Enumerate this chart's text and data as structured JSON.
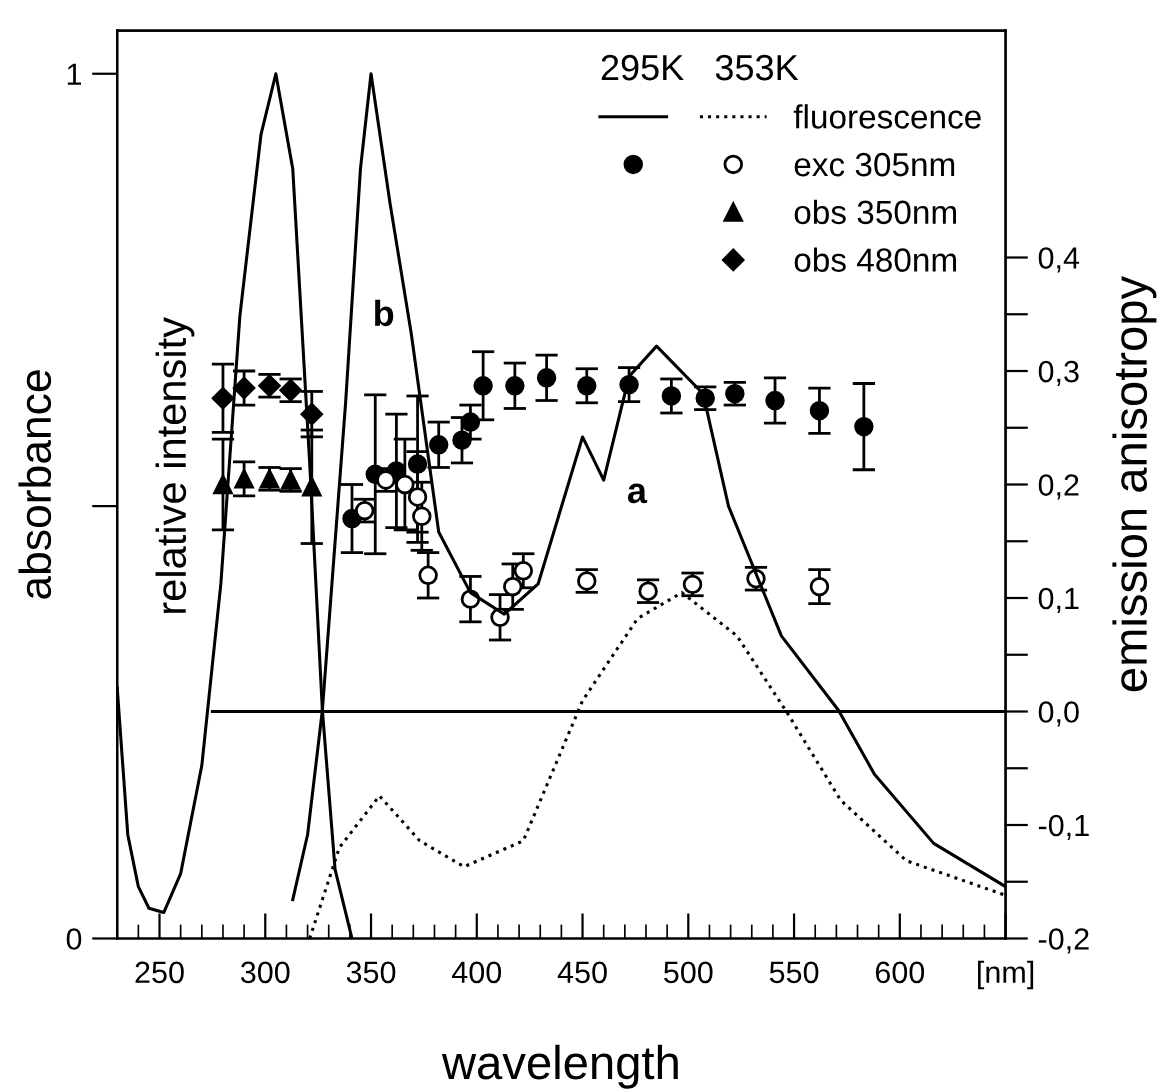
{
  "chart_data": {
    "type": "line",
    "xlabel": "wavelength",
    "ylabel": "absorbance",
    "y2label": "emission anisotropy",
    "legend_title": "295K   353K",
    "legend": "top right",
    "xlim": [
      230,
      650
    ],
    "ylim": [
      0,
      1.05
    ],
    "y2lim": [
      -0.2,
      0.6
    ],
    "xticks": [
      {
        "value": 230,
        "label": null
      },
      {
        "value": 240,
        "label": null
      },
      250,
      {
        "value": 260,
        "label": null
      },
      {
        "value": 270,
        "label": null
      },
      {
        "value": 280,
        "label": null
      },
      {
        "value": 290,
        "label": null
      },
      300,
      {
        "value": 310,
        "label": null
      },
      {
        "value": 320,
        "label": null
      },
      {
        "value": 330,
        "label": null
      },
      {
        "value": 340,
        "label": null
      },
      350,
      {
        "value": 360,
        "label": null
      },
      {
        "value": 370,
        "label": null
      },
      {
        "value": 380,
        "label": null
      },
      {
        "value": 390,
        "label": null
      },
      400,
      {
        "value": 410,
        "label": null
      },
      {
        "value": 420,
        "label": null
      },
      {
        "value": 430,
        "label": null
      },
      {
        "value": 440,
        "label": null
      },
      450,
      {
        "value": 460,
        "label": null
      },
      {
        "value": 470,
        "label": null
      },
      {
        "value": 480,
        "label": null
      },
      {
        "value": 490,
        "label": null
      },
      500,
      {
        "value": 510,
        "label": null
      },
      {
        "value": 520,
        "label": null
      },
      {
        "value": 530,
        "label": null
      },
      {
        "value": 540,
        "label": null
      },
      550,
      {
        "value": 560,
        "label": null
      },
      {
        "value": 570,
        "label": null
      },
      {
        "value": 580,
        "label": null
      },
      {
        "value": 590,
        "label": null
      },
      600,
      {
        "value": 610,
        "label": null
      },
      {
        "value": 620,
        "label": null
      },
      {
        "value": 630,
        "label": null
      },
      {
        "value": 640,
        "label": null
      },
      {
        "value": 650,
        "label": "[nm]"
      }
    ],
    "yticks": [
      0,
      {
        "value": 0.5,
        "label": null
      },
      1
    ],
    "y2ticks": [
      {
        "value": -0.2,
        "label": "-0,2"
      },
      {
        "value": -0.15,
        "label": null
      },
      {
        "value": -0.1,
        "label": "-0,1"
      },
      {
        "value": -0.05,
        "label": null
      },
      {
        "value": 0,
        "label": "0,0"
      },
      {
        "value": 0.05,
        "label": null
      },
      {
        "value": 0.1,
        "label": "0,1"
      },
      {
        "value": 0.15,
        "label": null
      },
      {
        "value": 0.2,
        "label": "0,2"
      },
      {
        "value": 0.25,
        "label": null
      },
      {
        "value": 0.3,
        "label": "0,3"
      },
      {
        "value": 0.35,
        "label": null
      },
      {
        "value": 0.4,
        "label": "0,4"
      }
    ],
    "annotations": [
      "relative intensity",
      "b",
      "a"
    ],
    "series": [
      {
        "color": "#000000",
        "line_style": "solid",
        "x": [
          230,
          235,
          240,
          245,
          252,
          260,
          270,
          279,
          288,
          298,
          305,
          313,
          321,
          327,
          333,
          341
        ],
        "values": [
          0.29,
          0.12,
          0.06,
          0.035,
          0.03,
          0.075,
          0.2,
          0.41,
          0.72,
          0.93,
          1.0,
          0.89,
          0.55,
          0.264,
          0.08,
          0.0
        ]
      },
      {
        "color": "#000000",
        "line_style": "solid",
        "x": [
          313,
          320,
          327,
          338,
          345,
          350,
          359,
          369,
          382,
          397,
          413,
          429,
          450,
          460,
          472,
          485,
          507,
          519,
          544,
          571,
          588,
          616,
          650
        ],
        "values": [
          0.045,
          0.12,
          0.264,
          0.62,
          0.89,
          1.0,
          0.85,
          0.7,
          0.47,
          0.4,
          0.375,
          0.41,
          0.58,
          0.53,
          0.65,
          0.685,
          0.63,
          0.5,
          0.35,
          0.264,
          0.19,
          0.11,
          0.06
        ]
      },
      {
        "name": "fluorescence",
        "color": "#000000",
        "line_style": "dotted",
        "x": [
          321,
          335,
          354,
          373,
          394,
          422,
          450,
          476,
          497,
          523,
          547,
          572,
          603,
          650
        ],
        "values": [
          0.0,
          0.105,
          0.165,
          0.113,
          0.083,
          0.113,
          0.275,
          0.37,
          0.4,
          0.35,
          0.26,
          0.16,
          0.09,
          0.05
        ]
      },
      {
        "axis": "y2",
        "color": "#000000",
        "line_style": "solid",
        "x": [
          275,
          650
        ],
        "values": [
          0,
          0
        ]
      },
      {
        "type": "scatter",
        "axis": "y2",
        "marker": "circle",
        "color": "#000000",
        "x": [
          341,
          352,
          362,
          372,
          382,
          393,
          397,
          403,
          418,
          433,
          452,
          472,
          492,
          508,
          522,
          541,
          562,
          583
        ],
        "values": [
          0.17,
          0.209,
          0.212,
          0.218,
          0.235,
          0.239,
          0.255,
          0.287,
          0.287,
          0.294,
          0.287,
          0.288,
          0.278,
          0.276,
          0.28,
          0.274,
          0.265,
          0.251
        ],
        "errors": [
          0.03,
          0.07,
          0.05,
          0.06,
          0.02,
          0.02,
          0.015,
          0.03,
          0.02,
          0.02,
          0.015,
          0.015,
          0.015,
          0.01,
          0.01,
          0.02,
          0.02,
          0.038
        ]
      },
      {
        "type": "scatter",
        "name": "exc 305nm",
        "axis": "y2",
        "marker": "circle",
        "color": "#ffffff",
        "x": [
          347,
          357,
          366,
          372,
          374,
          377,
          397,
          411,
          417,
          422,
          452,
          481,
          502,
          532,
          562
        ],
        "values": [
          0.177,
          0.204,
          0.2,
          0.189,
          0.172,
          0.12,
          0.099,
          0.083,
          0.11,
          0.124,
          0.115,
          0.106,
          0.112,
          0.117,
          0.11
        ],
        "errors": [
          0.01,
          0.01,
          0.04,
          0.04,
          0.03,
          0.02,
          0.02,
          0.02,
          0.02,
          0.015,
          0.01,
          0.01,
          0.01,
          0.01,
          0.015
        ]
      },
      {
        "type": "scatter",
        "name": "obs 350nm",
        "axis": "y2",
        "marker": "triangle",
        "color": "#000000",
        "x": [
          280,
          290,
          302,
          312,
          322
        ],
        "values": [
          0.2,
          0.205,
          0.205,
          0.204,
          0.198
        ],
        "errors": [
          0.04,
          0.015,
          0.01,
          0.01,
          0.05
        ]
      },
      {
        "type": "scatter",
        "name": "obs 480nm",
        "axis": "y2",
        "marker": "diamond",
        "color": "#000000",
        "x": [
          280,
          290,
          302,
          312,
          322
        ],
        "values": [
          0.276,
          0.285,
          0.287,
          0.283,
          0.262
        ],
        "errors": [
          0.03,
          0.015,
          0.01,
          0.01,
          0.02
        ]
      }
    ]
  }
}
